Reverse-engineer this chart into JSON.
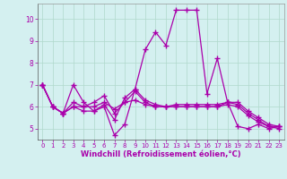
{
  "xlabel": "Windchill (Refroidissement éolien,°C)",
  "x": [
    0,
    1,
    2,
    3,
    4,
    5,
    6,
    7,
    8,
    9,
    10,
    11,
    12,
    13,
    14,
    15,
    16,
    17,
    18,
    19,
    20,
    21,
    22,
    23
  ],
  "lines": [
    [
      7.0,
      6.0,
      5.7,
      6.0,
      5.8,
      5.8,
      6.0,
      4.7,
      5.2,
      6.8,
      8.6,
      9.4,
      8.8,
      10.4,
      10.4,
      10.4,
      6.6,
      8.2,
      6.2,
      5.1,
      5.0,
      5.2,
      5.0,
      5.1
    ],
    [
      7.0,
      6.0,
      5.7,
      6.0,
      6.0,
      6.2,
      6.5,
      5.7,
      6.2,
      6.7,
      6.2,
      6.0,
      6.0,
      6.0,
      6.0,
      6.0,
      6.0,
      6.0,
      6.2,
      6.2,
      5.8,
      5.5,
      5.2,
      5.1
    ],
    [
      7.0,
      6.0,
      5.7,
      7.0,
      6.2,
      5.8,
      6.1,
      5.4,
      6.4,
      6.8,
      6.3,
      6.1,
      6.0,
      6.1,
      6.1,
      6.1,
      6.1,
      6.1,
      6.2,
      6.1,
      5.7,
      5.4,
      5.1,
      5.1
    ],
    [
      7.0,
      6.0,
      5.7,
      6.2,
      6.0,
      6.0,
      6.2,
      5.9,
      6.2,
      6.3,
      6.1,
      6.0,
      6.0,
      6.0,
      6.0,
      6.0,
      6.0,
      6.0,
      6.1,
      6.0,
      5.6,
      5.3,
      5.1,
      5.0
    ]
  ],
  "line_color": "#aa00aa",
  "marker": "+",
  "markersize": 4,
  "linewidth": 0.9,
  "bg_color": "#d4f0f0",
  "grid_color": "#b0d8cc",
  "ylim": [
    4.5,
    10.7
  ],
  "yticks": [
    5,
    6,
    7,
    8,
    9,
    10
  ],
  "xlim": [
    -0.5,
    23.5
  ],
  "tick_color": "#aa00aa",
  "xlabel_color": "#aa00aa",
  "tick_fontsize": 5.0,
  "xlabel_fontsize": 6.0
}
